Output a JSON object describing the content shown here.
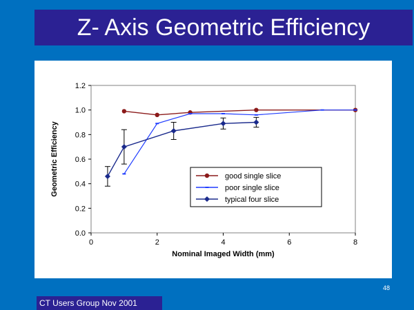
{
  "slide": {
    "title": "Z- Axis Geometric Efficiency",
    "slide_number": "48",
    "footer": "CT Users Group Nov 2001",
    "colors": {
      "background": "#0070c0",
      "title_bar": "#2b2193",
      "good": "#8b1a1a",
      "poor": "#1f3cff",
      "typical": "#1a2a8c"
    }
  },
  "chart_data": {
    "type": "line",
    "xlabel": "Nominal Imaged Width (mm)",
    "ylabel": "Geometric Efficiency",
    "xlim": [
      0,
      8
    ],
    "ylim": [
      0,
      1.2
    ],
    "x_ticks": [
      "0",
      "2",
      "4",
      "6",
      "8"
    ],
    "y_ticks": [
      "0.0",
      "0.2",
      "0.4",
      "0.6",
      "0.8",
      "1.0",
      "1.2"
    ],
    "grid": false,
    "legend_position": "lower-right",
    "series": [
      {
        "name": "good single slice",
        "marker": "circle",
        "points": [
          [
            1,
            0.99
          ],
          [
            2,
            0.96
          ],
          [
            3,
            0.98
          ],
          [
            5,
            1.0
          ],
          [
            8,
            1.0
          ]
        ]
      },
      {
        "name": "poor single slice",
        "marker": "dash",
        "points": [
          [
            1,
            0.48
          ],
          [
            2,
            0.89
          ],
          [
            3,
            0.97
          ],
          [
            4,
            0.97
          ],
          [
            5,
            0.96
          ],
          [
            7,
            1.0
          ],
          [
            8,
            1.0
          ]
        ]
      },
      {
        "name": "typical four slice",
        "marker": "diamond",
        "points": [
          [
            0.5,
            0.46
          ],
          [
            1,
            0.7
          ],
          [
            2.5,
            0.83
          ],
          [
            4,
            0.89
          ],
          [
            5,
            0.9
          ]
        ],
        "errors": [
          0.08,
          0.14,
          0.07,
          0.045,
          0.04
        ]
      }
    ]
  }
}
